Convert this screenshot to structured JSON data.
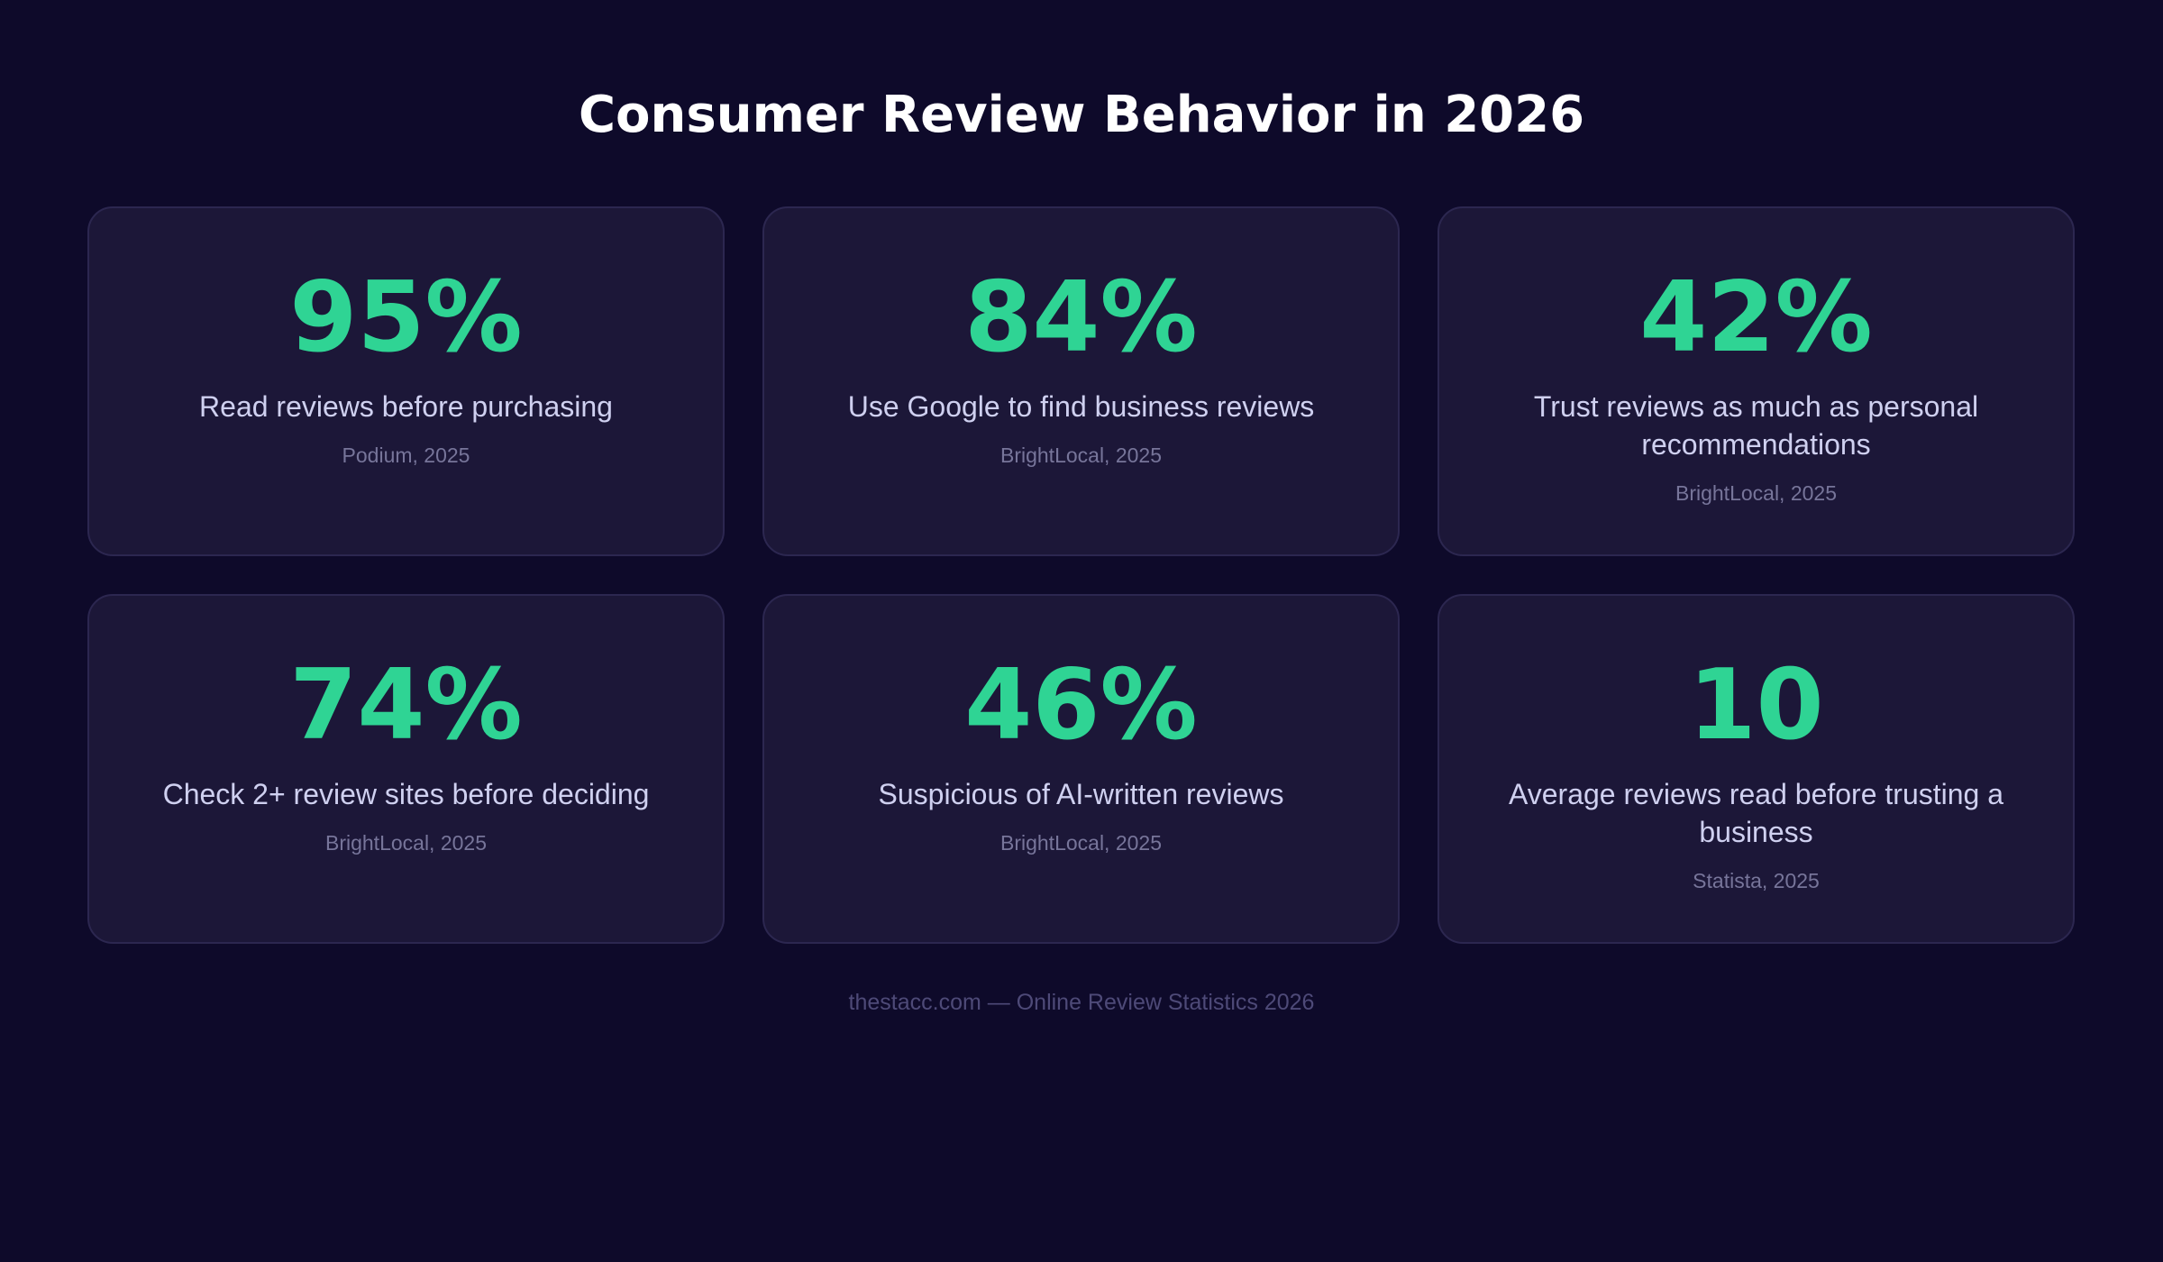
{
  "title": "Consumer Review Behavior in 2026",
  "accent_color": "#2fd494",
  "background_color": "#0e0a2a",
  "card_color": "#1c1738",
  "stats": [
    {
      "value": "95%",
      "description": "Read reviews before purchasing",
      "source": "Podium, 2025"
    },
    {
      "value": "84%",
      "description": "Use Google to find business reviews",
      "source": "BrightLocal, 2025"
    },
    {
      "value": "42%",
      "description": "Trust reviews as much as personal recommendations",
      "source": "BrightLocal, 2025"
    },
    {
      "value": "74%",
      "description": "Check 2+ review sites before deciding",
      "source": "BrightLocal, 2025"
    },
    {
      "value": "46%",
      "description": "Suspicious of AI-written reviews",
      "source": "BrightLocal, 2025"
    },
    {
      "value": "10",
      "description": "Average reviews read before trusting a business",
      "source": "Statista, 2025"
    }
  ],
  "footer": "thestacc.com — Online Review Statistics 2026"
}
